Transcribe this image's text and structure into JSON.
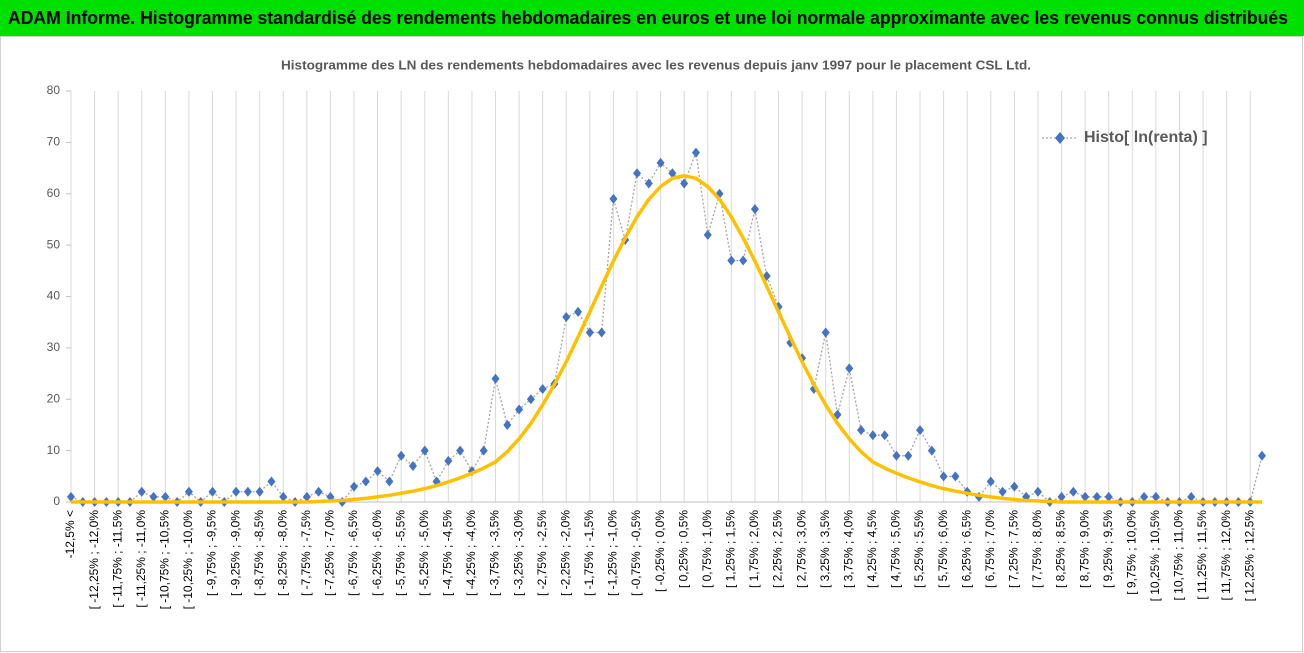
{
  "header": {
    "title": "ADAM Informe. Histogramme standardisé des rendements hebdomadaires en euros et une loi normale approximante avec les revenus connus distribués"
  },
  "chart_data": {
    "type": "line",
    "title": "Histogramme des LN des rendements hebdomadaires avec les revenus depuis janv 1997 pour le placement CSL Ltd.",
    "categories": [
      "-12,5% <",
      null,
      "[ -12,25% ; -12,0%",
      null,
      "[ -11,75% ; -11,5%",
      null,
      "[ -11,25% ; -11,0%",
      null,
      "[ -10,75% ; -10,5%",
      null,
      "[ -10,25% ; -10,0%",
      null,
      "[ -9,75% ; -9,5%",
      null,
      "[ -9,25% ; -9,0%",
      null,
      "[ -8,75% ; -8,5%",
      null,
      "[ -8,25% ; -8,0%",
      null,
      "[ -7,75% ; -7,5%",
      null,
      "[ -7,25% ; -7,0%",
      null,
      "[ -6,75% ; -6,5%",
      null,
      "[ -6,25% ; -6,0%",
      null,
      "[ -5,75% ; -5,5%",
      null,
      "[ -5,25% ; -5,0%",
      null,
      "[ -4,75% ; -4,5%",
      null,
      "[ -4,25% ; -4,0%",
      null,
      "[ -3,75% ; -3,5%",
      null,
      "[ -3,25% ; -3,0%",
      null,
      "[ -2,75% ; -2,5%",
      null,
      "[ -2,25% ; -2,0%",
      null,
      "[ -1,75% ; -1,5%",
      null,
      "[ -1,25% ; -1,0%",
      null,
      "[ -0,75% ; -0,5%",
      null,
      "[ -0,25% ; 0,0%",
      null,
      "[ 0,25% ; 0,5%",
      null,
      "[ 0,75% ; 1,0%",
      null,
      "[ 1,25% ; 1,5%",
      null,
      "[ 1,75% ; 2,0%",
      null,
      "[ 2,25% ; 2,5%",
      null,
      "[ 2,75% ; 3,0%",
      null,
      "[ 3,25% ; 3,5%",
      null,
      "[ 3,75% ; 4,0%",
      null,
      "[ 4,25% ; 4,5%",
      null,
      "[ 4,75% ; 5,0%",
      null,
      "[ 5,25% ; 5,5%",
      null,
      "[ 5,75% ; 6,0%",
      null,
      "[ 6,25% ; 6,5%",
      null,
      "[ 6,75% ; 7,0%",
      null,
      "[ 7,25% ; 7,5%",
      null,
      "[ 7,75% ; 8,0%",
      null,
      "[ 8,25% ; 8,5%",
      null,
      "[ 8,75% ; 9,0%",
      null,
      "[ 9,25% ; 9,5%",
      null,
      "[ 9,75% ; 10,0%",
      null,
      "[ 10,25% ; 10,5%",
      null,
      "[ 10,75% ; 11,0%",
      null,
      "[ 11,25% ; 11,5%",
      null,
      "[ 11,75% ; 12,0%",
      null,
      "[ 12,25% ; 12,5%",
      null
    ],
    "series": [
      {
        "name": "Histo[ ln(renta) ]",
        "color": "#4472c4",
        "line_color": "#a6a6a6",
        "marker": "diamond",
        "values": [
          1,
          0,
          0,
          0,
          0,
          0,
          2,
          1,
          1,
          0,
          2,
          0,
          2,
          0,
          2,
          2,
          2,
          4,
          1,
          0,
          1,
          2,
          1,
          0,
          3,
          4,
          6,
          4,
          9,
          7,
          10,
          4,
          8,
          10,
          6,
          10,
          24,
          15,
          18,
          20,
          22,
          23,
          36,
          37,
          33,
          33,
          59,
          51,
          64,
          62,
          66,
          64,
          62,
          68,
          52,
          60,
          47,
          47,
          57,
          44,
          38,
          31,
          28,
          22,
          33,
          17,
          26,
          14,
          13,
          13,
          9,
          9,
          14,
          10,
          5,
          5,
          2,
          1,
          4,
          2,
          3,
          1,
          2,
          0,
          1,
          2,
          1,
          1,
          1,
          0,
          0,
          1,
          1,
          0,
          0,
          1,
          0,
          0,
          0,
          0,
          0,
          9
        ]
      },
      {
        "color": "#ffc000",
        "marker": "none",
        "values": [
          0,
          0,
          0,
          0,
          0,
          0,
          0,
          0,
          0,
          0,
          0,
          0,
          0,
          0,
          0,
          0,
          0,
          0,
          0,
          0,
          0,
          0.1,
          0.2,
          0.3,
          0.5,
          0.7,
          1.0,
          1.3,
          1.7,
          2.1,
          2.6,
          3.2,
          3.9,
          4.7,
          5.6,
          6.6,
          7.8,
          9.8,
          12.3,
          15.3,
          18.9,
          22.9,
          27.3,
          32.1,
          37.0,
          42.0,
          46.9,
          51.4,
          55.5,
          58.9,
          61.4,
          63.0,
          63.5,
          63.0,
          61.4,
          58.9,
          55.5,
          51.4,
          46.9,
          42.0,
          37.0,
          32.1,
          27.3,
          22.9,
          18.9,
          15.3,
          12.3,
          9.8,
          7.8,
          6.6,
          5.6,
          4.7,
          3.9,
          3.2,
          2.6,
          2.1,
          1.7,
          1.3,
          1.0,
          0.7,
          0.5,
          0.3,
          0.2,
          0.1,
          0,
          0,
          0,
          0,
          0,
          0,
          0,
          0,
          0,
          0,
          0,
          0,
          0,
          0,
          0,
          0,
          0,
          0
        ]
      }
    ],
    "ylim": [
      0,
      80
    ],
    "yticks": [
      0,
      10,
      20,
      30,
      40,
      50,
      60,
      70,
      80
    ],
    "grid": "x",
    "legend": "top-right"
  }
}
